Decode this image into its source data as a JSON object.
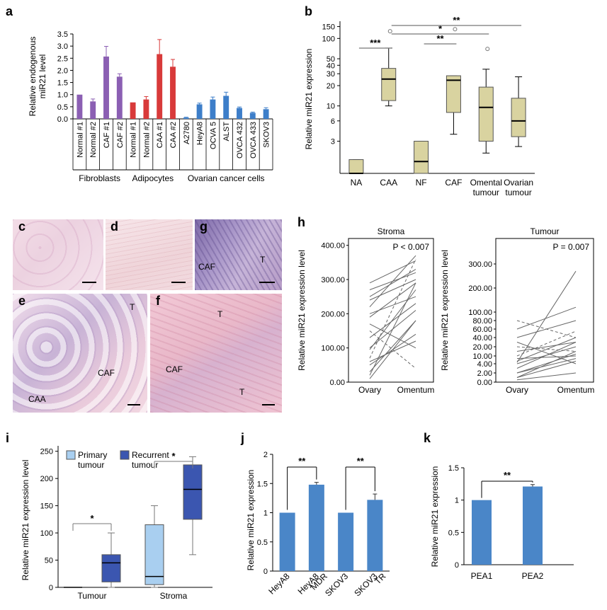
{
  "panels": {
    "a": {
      "letter": "a"
    },
    "b": {
      "letter": "b"
    },
    "c": {
      "letter": "c"
    },
    "d": {
      "letter": "d"
    },
    "e": {
      "letter": "e",
      "labels": [
        "T",
        "CAF",
        "CAA"
      ]
    },
    "f": {
      "letter": "f",
      "labels": [
        "T",
        "CAF",
        "T"
      ]
    },
    "g": {
      "letter": "g",
      "labels": [
        "CAF",
        "T"
      ]
    },
    "h": {
      "letter": "h"
    },
    "i": {
      "letter": "i"
    },
    "j": {
      "letter": "j"
    },
    "k": {
      "letter": "k"
    }
  },
  "colors": {
    "purple": "#8b5fb3",
    "red": "#d83a3a",
    "blue": "#3d7ec9",
    "box": "#d9d3a0",
    "bar_blue": "#4a86c8",
    "light_blue": "#a9cff0",
    "dark_blue": "#3b56b0"
  },
  "chart_data": [
    {
      "panel": "a",
      "type": "bar",
      "ylabel": "Relative endogenous miR21 level",
      "ylim": [
        0,
        3.5
      ],
      "yticks": [
        "0.0",
        "0.5",
        "1.0",
        "1.5",
        "2.0",
        "2.5",
        "3.0",
        "3.5"
      ],
      "categories": [
        "Normal #1",
        "Normal #2",
        "CAF #1",
        "CAF #2",
        "Normal #1",
        "Normal #2",
        "CAA #1",
        "CAA #2",
        "A2780",
        "HeyA8",
        "OCVA 5",
        "ALST",
        "OVCA 432",
        "OVCA 433",
        "SKOV3"
      ],
      "values": [
        1.0,
        0.72,
        2.57,
        1.74,
        0.68,
        0.8,
        2.67,
        2.15,
        0.05,
        0.6,
        0.8,
        0.95,
        0.45,
        0.25,
        0.4
      ],
      "errors": [
        0,
        0.1,
        0.42,
        0.12,
        0,
        0.12,
        0.6,
        0.3,
        0.02,
        0.05,
        0.1,
        0.15,
        0.04,
        0.03,
        0.06
      ],
      "groups": [
        {
          "name": "Fibroblasts",
          "start": 0,
          "end": 3,
          "color": "purple"
        },
        {
          "name": "Adipocytes",
          "start": 4,
          "end": 7,
          "color": "red"
        },
        {
          "name": "Ovarian cancer cells",
          "start": 8,
          "end": 14,
          "color": "blue"
        }
      ]
    },
    {
      "panel": "b",
      "type": "box",
      "ylabel": "Relative miR21 expression",
      "yticks": [
        "3",
        "6",
        "10",
        "20",
        "30",
        "40",
        "50",
        "100",
        "150"
      ],
      "ytick_values": [
        3,
        6,
        10,
        20,
        30,
        40,
        50,
        100,
        150
      ],
      "categories": [
        "NA",
        "CAA",
        "NF",
        "CAF",
        "Omental tumour",
        "Ovarian tumour"
      ],
      "boxes": [
        {
          "min": 1.0,
          "q1": 1.0,
          "median": 1.0,
          "q3": 1.6,
          "max": 1.6,
          "outliers": []
        },
        {
          "min": 10,
          "q1": 12,
          "median": 25,
          "q3": 36,
          "max": 72,
          "outliers": [
            128
          ]
        },
        {
          "min": 1.0,
          "q1": 1.0,
          "median": 1.5,
          "q3": 3,
          "max": 3,
          "outliers": []
        },
        {
          "min": 3.8,
          "q1": 8,
          "median": 24,
          "q3": 28,
          "max": 28,
          "outliers": [
            137
          ]
        },
        {
          "min": 2,
          "q1": 3,
          "median": 9.5,
          "q3": 19,
          "max": 35,
          "outliers": [
            70
          ]
        },
        {
          "min": 2.5,
          "q1": 3.5,
          "median": 6,
          "q3": 13,
          "max": 27,
          "outliers": []
        }
      ],
      "significance": [
        {
          "from": 0,
          "to": 1,
          "label": "***"
        },
        {
          "from": 2,
          "to": 3,
          "label": "**"
        },
        {
          "from": 1,
          "to": 4,
          "label": "*"
        },
        {
          "from": 1,
          "to": 5,
          "label": "**"
        }
      ]
    },
    {
      "panel": "h-stroma",
      "type": "line",
      "title": "Stroma",
      "ylabel": "Relative miR21 expression level",
      "categories": [
        "Ovary",
        "Omentum"
      ],
      "yticks": [
        "0.00",
        "100.00",
        "200.00",
        "300.00",
        "400.00"
      ],
      "ylim": [
        0,
        420
      ],
      "annotation": "P < 0.007",
      "pairs": [
        [
          10,
          180
        ],
        [
          20,
          290
        ],
        [
          30,
          180
        ],
        [
          50,
          140
        ],
        [
          60,
          120
        ],
        [
          70,
          360
        ],
        [
          95,
          270
        ],
        [
          100,
          210
        ],
        [
          130,
          230
        ],
        [
          150,
          40
        ],
        [
          170,
          100
        ],
        [
          190,
          290
        ],
        [
          200,
          250
        ],
        [
          220,
          370
        ],
        [
          240,
          300
        ],
        [
          250,
          330
        ],
        [
          270,
          320
        ],
        [
          290,
          355
        ]
      ],
      "dashed": [
        5,
        9
      ]
    },
    {
      "panel": "h-tumour",
      "type": "line",
      "title": "Tumour",
      "ylabel": "Relative miR21 expression level",
      "categories": [
        "Ovary",
        "Omentum"
      ],
      "yticks": [
        "0.00",
        "2.00",
        "4.00",
        "10.00",
        "20.00",
        "40.00",
        "60.00",
        "80.00",
        "100.00",
        "200.00",
        "300.00"
      ],
      "ytick_values": [
        0,
        2,
        4,
        10,
        20,
        40,
        60,
        80,
        100,
        200,
        300
      ],
      "annotation": "P = 0.007",
      "pairs": [
        [
          0.5,
          2
        ],
        [
          1,
          6
        ],
        [
          2,
          12
        ],
        [
          3,
          30
        ],
        [
          4,
          20
        ],
        [
          6,
          40
        ],
        [
          8,
          10
        ],
        [
          10,
          55
        ],
        [
          15,
          30
        ],
        [
          20,
          15
        ],
        [
          30,
          4
        ],
        [
          40,
          80
        ],
        [
          60,
          120
        ],
        [
          80,
          40
        ],
        [
          1,
          15
        ],
        [
          2,
          8
        ],
        [
          5,
          270
        ]
      ],
      "dashed": [
        7,
        9,
        13
      ]
    },
    {
      "panel": "i",
      "type": "box",
      "ylabel": "Relative miR21 expression level",
      "ylim": [
        0,
        260
      ],
      "yticks": [
        "0",
        "50",
        "100",
        "150",
        "200",
        "250"
      ],
      "categories": [
        "Tumour",
        "Stroma"
      ],
      "legend": [
        "Primary tumour",
        "Recurrent tumour"
      ],
      "boxes": [
        {
          "group": 0,
          "series": 0,
          "min": 0,
          "q1": 0,
          "median": 0,
          "q3": 0,
          "max": 0
        },
        {
          "group": 0,
          "series": 1,
          "min": 0,
          "q1": 10,
          "median": 45,
          "q3": 60,
          "max": 100
        },
        {
          "group": 1,
          "series": 0,
          "min": 0,
          "q1": 5,
          "median": 20,
          "q3": 115,
          "max": 150
        },
        {
          "group": 1,
          "series": 1,
          "min": 60,
          "q1": 125,
          "median": 180,
          "q3": 225,
          "max": 240
        }
      ],
      "significance": [
        "*",
        "*"
      ]
    },
    {
      "panel": "j",
      "type": "bar",
      "ylabel": "Relative miR21 expression",
      "ylim": [
        0,
        2
      ],
      "yticks": [
        "0",
        "0.5",
        "1",
        "1.5",
        "2"
      ],
      "categories": [
        "HeyA8",
        "HeyA8 MDR",
        "SKOV3",
        "SKOV3 TR"
      ],
      "values": [
        1.0,
        1.48,
        1.0,
        1.22
      ],
      "errors": [
        0,
        0.04,
        0,
        0.1
      ],
      "significance": [
        "**",
        "**"
      ]
    },
    {
      "panel": "k",
      "type": "bar",
      "ylabel": "Relative miR21 expression",
      "ylim": [
        0,
        1.5
      ],
      "yticks": [
        "0",
        "0.5",
        "1",
        "1.5"
      ],
      "categories": [
        "PEA1",
        "PEA2"
      ],
      "values": [
        1.0,
        1.21
      ],
      "errors": [
        0,
        0.03
      ],
      "significance": [
        "**"
      ]
    }
  ]
}
